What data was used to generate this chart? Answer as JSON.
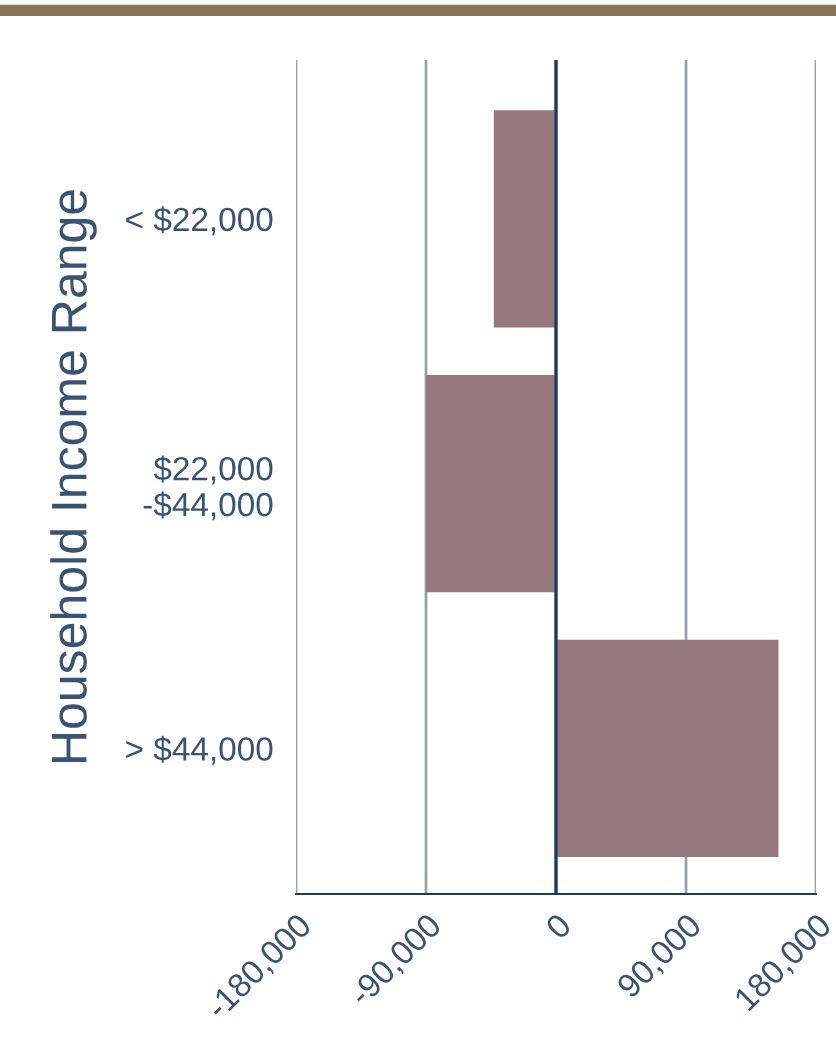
{
  "chart_data": {
    "type": "bar",
    "orientation": "horizontal",
    "ylabel": "Household Income Range",
    "categories": [
      "< $22,000",
      "$22,000\n-$44,000",
      "> $44,000"
    ],
    "values": [
      -43000,
      -90000,
      154000
    ],
    "color": "#95777f",
    "xlim": [
      -180000,
      180000
    ],
    "xticks": [
      {
        "value": -180000,
        "label": "-180,000"
      },
      {
        "value": -90000,
        "label": "-90,000"
      },
      0,
      {
        "value": 90000,
        "label": "90,000"
      },
      {
        "value": 180000,
        "label": "180,000"
      }
    ],
    "grid": "x"
  }
}
